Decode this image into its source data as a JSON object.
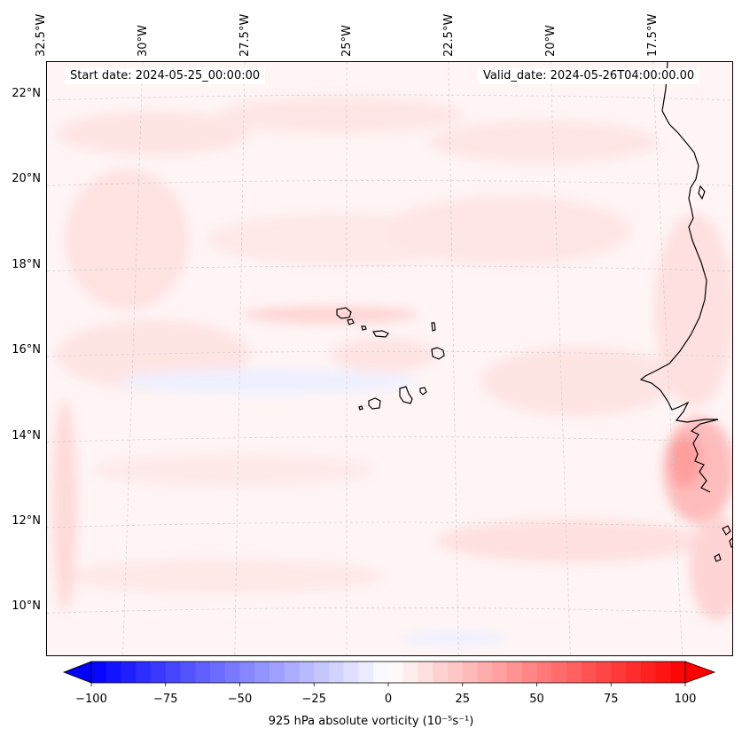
{
  "map": {
    "lon_labels": [
      {
        "text": "32.5°W",
        "lon": -32.5
      },
      {
        "text": "30°W",
        "lon": -30.0
      },
      {
        "text": "27.5°W",
        "lon": -27.5
      },
      {
        "text": "25°W",
        "lon": -25.0
      },
      {
        "text": "22.5°W",
        "lon": -22.5
      },
      {
        "text": "20°W",
        "lon": -20.0
      },
      {
        "text": "17.5°W",
        "lon": -17.5
      }
    ],
    "lat_labels": [
      {
        "text": "22°N",
        "lat": 22
      },
      {
        "text": "20°N",
        "lat": 20
      },
      {
        "text": "18°N",
        "lat": 18
      },
      {
        "text": "16°N",
        "lat": 16
      },
      {
        "text": "14°N",
        "lat": 14
      },
      {
        "text": "12°N",
        "lat": 12
      },
      {
        "text": "10°N",
        "lat": 10
      }
    ],
    "start_date": "Start date: 2024-05-25_00:00:00",
    "valid_date": "Valid_date: 2024-05-26T04:00:00.00"
  },
  "colorbar": {
    "min": -100,
    "max": 100,
    "ticks": [
      "−100",
      "−75",
      "−50",
      "−25",
      "0",
      "25",
      "50",
      "75",
      "100"
    ],
    "label": "925 hPa absolute vorticity (10⁻⁵s⁻¹)",
    "low_color": "#0000ff",
    "high_color": "#ff0000"
  }
}
